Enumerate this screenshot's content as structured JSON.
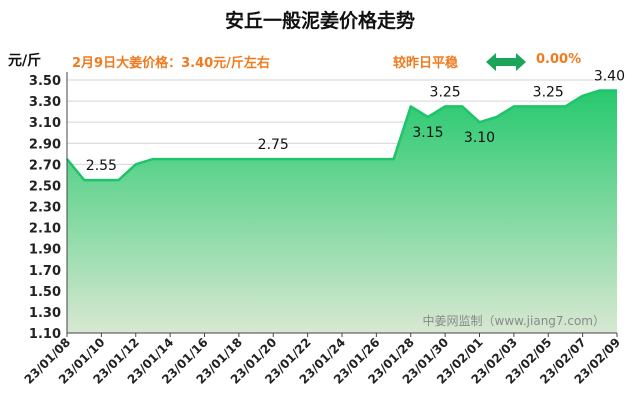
{
  "title": "安丘一般泥姜价格走势",
  "unit_label": "元/斤",
  "price_note": "2月9日大姜价格：3.40元/斤左右",
  "compare_label": "较昨日平稳",
  "compare_value": "0.00%",
  "watermark": "中姜网监制（www.jiang7.com）",
  "colors": {
    "line": "#1ec46a",
    "fill_top": "#26c96e",
    "fill_bottom": "#d8e8d2",
    "accent": "#f07a1e",
    "arrow": "#1aa55a"
  },
  "chart_data": {
    "type": "area",
    "x": [
      "23/01/08",
      "23/01/09",
      "23/01/10",
      "23/01/11",
      "23/01/12",
      "23/01/13",
      "23/01/14",
      "23/01/15",
      "23/01/16",
      "23/01/17",
      "23/01/18",
      "23/01/19",
      "23/01/20",
      "23/01/21",
      "23/01/22",
      "23/01/23",
      "23/01/24",
      "23/01/25",
      "23/01/26",
      "23/01/27",
      "23/01/28",
      "23/01/29",
      "23/01/30",
      "23/01/31",
      "23/02/01",
      "23/02/02",
      "23/02/03",
      "23/02/04",
      "23/02/05",
      "23/02/06",
      "23/02/07",
      "23/02/08",
      "23/02/09"
    ],
    "values": [
      2.75,
      2.55,
      2.55,
      2.55,
      2.7,
      2.75,
      2.75,
      2.75,
      2.75,
      2.75,
      2.75,
      2.75,
      2.75,
      2.75,
      2.75,
      2.75,
      2.75,
      2.75,
      2.75,
      2.75,
      3.25,
      3.15,
      3.25,
      3.25,
      3.1,
      3.15,
      3.25,
      3.25,
      3.25,
      3.25,
      3.35,
      3.4,
      3.4
    ],
    "x_tick_labels": [
      "23/01/08",
      "23/01/10",
      "23/01/12",
      "23/01/14",
      "23/01/16",
      "23/01/18",
      "23/01/20",
      "23/01/22",
      "23/01/24",
      "23/01/26",
      "23/01/28",
      "23/01/30",
      "23/02/01",
      "23/02/03",
      "23/02/05",
      "23/02/07",
      "23/02/09"
    ],
    "y_ticks": [
      "1.10",
      "1.30",
      "1.50",
      "1.70",
      "1.90",
      "2.10",
      "2.30",
      "2.50",
      "2.70",
      "2.90",
      "3.10",
      "3.30",
      "3.50"
    ],
    "ylim": [
      1.1,
      3.5
    ],
    "data_labels": [
      {
        "index": 2,
        "text": "2.55"
      },
      {
        "index": 12,
        "text": "2.75"
      },
      {
        "index": 21,
        "text": "3.15"
      },
      {
        "index": 22,
        "text": "3.25"
      },
      {
        "index": 24,
        "text": "3.10"
      },
      {
        "index": 28,
        "text": "3.25"
      },
      {
        "index": 32,
        "text": "3.40"
      }
    ],
    "grid": true
  }
}
